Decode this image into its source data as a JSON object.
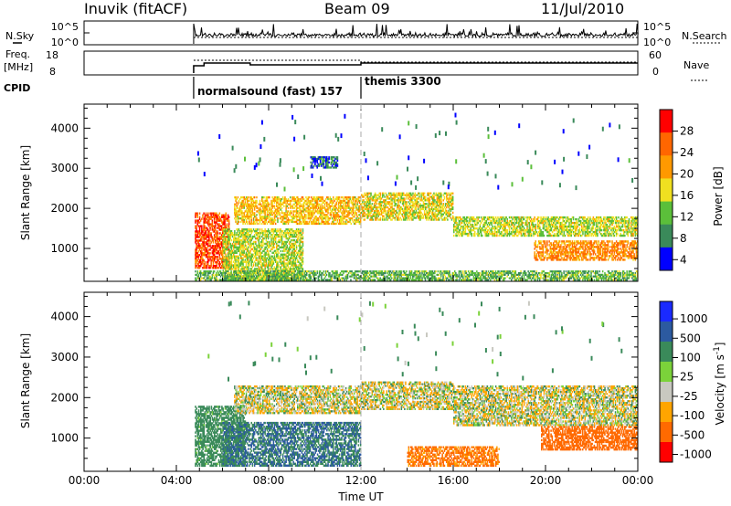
{
  "header": {
    "station": "Inuvik (fitACF)",
    "beam": "Beam 09",
    "date": "11/Jul/2010"
  },
  "noise_panel": {
    "left_label": "N.Sky",
    "left_ticks": [
      "10^5",
      "10^0"
    ],
    "right_ticks": [
      "10^5",
      "10^0"
    ],
    "right_label": "N.Search"
  },
  "freq_panel": {
    "left_label_1": "Freq.",
    "left_label_2": "[MHz]",
    "left_ticks": [
      "18",
      "8"
    ],
    "right_ticks": [
      "60",
      "0"
    ],
    "right_label": "Nave"
  },
  "cpid": {
    "label": "CPID",
    "modes": [
      {
        "name": "normalsound (fast) 157",
        "start_hour": 4.75
      },
      {
        "name": "themis 3300",
        "start_hour": 12.0
      }
    ]
  },
  "colors": {
    "power": [
      "#0000ff",
      "#3a8a5a",
      "#5bbf3a",
      "#f0e020",
      "#ff9900",
      "#ff6600",
      "#ff0000"
    ],
    "velocity": [
      "#ff0000",
      "#ff6a00",
      "#ffa500",
      "#c8c8c0",
      "#7bd23a",
      "#3a8a5a",
      "#2c5aa0",
      "#1a2aff"
    ],
    "dashed_line": "#aaaaaa"
  },
  "chart_data": [
    {
      "type": "heatmap",
      "panel": "power",
      "ylabel": "Slant Range [km]",
      "xlabel": "",
      "x_ticks": [
        "00:00",
        "04:00",
        "08:00",
        "12:00",
        "16:00",
        "20:00",
        "00:00"
      ],
      "xlim_hours": [
        0,
        24
      ],
      "ylim_km": [
        180,
        4600
      ],
      "y_ticks": [
        1000,
        2000,
        3000,
        4000
      ],
      "colorbar_label": "Power [dB]",
      "colorbar_ticks": [
        "28",
        "24",
        "20",
        "16",
        "12",
        "8",
        "4"
      ],
      "colorbar_range": [
        0,
        30
      ],
      "data_start_hour": 4.75,
      "echo_regions": [
        {
          "t": [
            4.8,
            6.3
          ],
          "r": [
            500,
            1900
          ],
          "level": 26
        },
        {
          "t": [
            6.0,
            9.5
          ],
          "r": [
            200,
            1500
          ],
          "level": 14
        },
        {
          "t": [
            6.5,
            12.0
          ],
          "r": [
            1600,
            2300
          ],
          "level": 18
        },
        {
          "t": [
            12.0,
            16.0
          ],
          "r": [
            1700,
            2400
          ],
          "level": 16
        },
        {
          "t": [
            16.0,
            24.0
          ],
          "r": [
            1300,
            1800
          ],
          "level": 14
        },
        {
          "t": [
            19.5,
            24.0
          ],
          "r": [
            700,
            1200
          ],
          "level": 22
        },
        {
          "t": [
            4.8,
            24.0
          ],
          "r": [
            200,
            450
          ],
          "level": 10
        },
        {
          "t": [
            9.8,
            11.0
          ],
          "r": [
            3000,
            3300
          ],
          "level": 6
        }
      ]
    },
    {
      "type": "heatmap",
      "panel": "velocity",
      "ylabel": "Slant Range [km]",
      "xlabel": "Time UT",
      "x_ticks": [
        "00:00",
        "04:00",
        "08:00",
        "12:00",
        "16:00",
        "20:00",
        "00:00"
      ],
      "xlim_hours": [
        0,
        24
      ],
      "ylim_km": [
        180,
        4600
      ],
      "y_ticks": [
        1000,
        2000,
        3000,
        4000
      ],
      "colorbar_label": "Velocity [m s^-1]",
      "colorbar_ticks": [
        "1000",
        "500",
        "100",
        "25",
        "-25",
        "-100",
        "-500",
        "-1000"
      ],
      "data_start_hour": 4.75,
      "echo_regions": [
        {
          "t": [
            4.8,
            7.0
          ],
          "r": [
            300,
            1800
          ],
          "level": 150
        },
        {
          "t": [
            6.5,
            12.0
          ],
          "r": [
            1600,
            2300
          ],
          "level": 0
        },
        {
          "t": [
            12.0,
            16.0
          ],
          "r": [
            1700,
            2400
          ],
          "level": 0
        },
        {
          "t": [
            16.0,
            24.0
          ],
          "r": [
            1300,
            2300
          ],
          "level": 0
        },
        {
          "t": [
            19.8,
            24.0
          ],
          "r": [
            700,
            1300
          ],
          "level": -300
        },
        {
          "t": [
            6.0,
            12.0
          ],
          "r": [
            300,
            1400
          ],
          "level": 300
        },
        {
          "t": [
            14.0,
            18.0
          ],
          "r": [
            300,
            800
          ],
          "level": -150
        }
      ]
    }
  ]
}
